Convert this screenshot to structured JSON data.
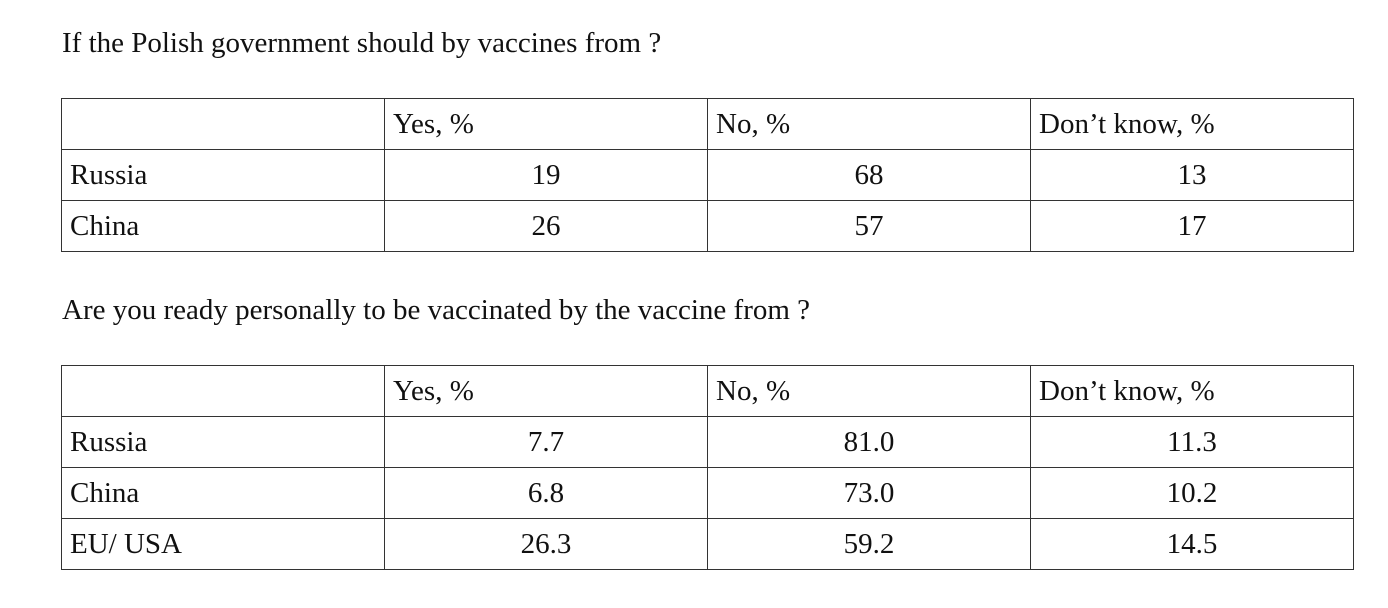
{
  "sections": [
    {
      "title": "If the Polish government should by vaccines from ?",
      "table": {
        "header": [
          "Yes, %",
          "No, %",
          "Don’t know, %"
        ],
        "rows": [
          [
            "Russia",
            "19",
            "68",
            "13"
          ],
          [
            "China",
            "26",
            "57",
            "17"
          ]
        ]
      }
    },
    {
      "title": "Are you ready personally to be vaccinated by the vaccine from ?",
      "table": {
        "header": [
          "Yes, %",
          "No, %",
          "Don’t know, %"
        ],
        "rows": [
          [
            "Russia",
            "7.7",
            "81.0",
            "11.3"
          ],
          [
            "China",
            "6.8",
            "73.0",
            "10.2"
          ],
          [
            "EU/ USA",
            "26.3",
            "59.2",
            "14.5"
          ]
        ]
      }
    }
  ]
}
